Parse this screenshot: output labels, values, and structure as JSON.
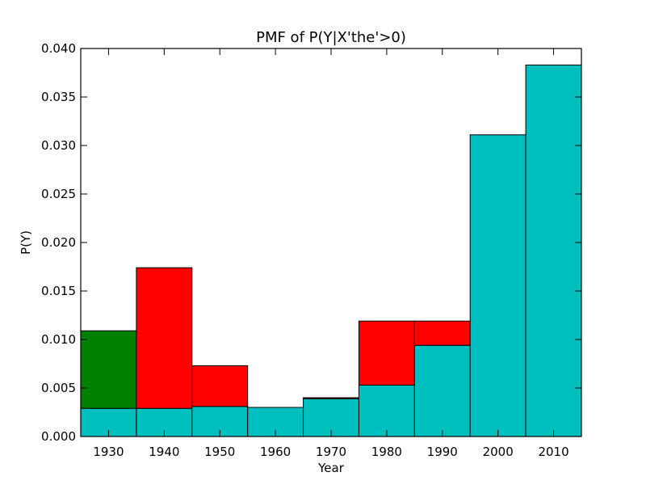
{
  "chart_data": {
    "type": "bar",
    "stacked": true,
    "title": "PMF of P(Y|X'the'>0)",
    "xlabel": "Year",
    "ylabel": "P(Y)",
    "xlim": [
      1925,
      2015
    ],
    "ylim": [
      0,
      0.04
    ],
    "bin_width": 10,
    "categories": [
      "1930",
      "1940",
      "1950",
      "1960",
      "1970",
      "1980",
      "1990",
      "2000",
      "2010"
    ],
    "x": [
      1930,
      1940,
      1950,
      1960,
      1970,
      1980,
      1990,
      2000,
      2010
    ],
    "x_ticks": [
      "1930",
      "1940",
      "1950",
      "1960",
      "1970",
      "1980",
      "1990",
      "2000",
      "2010"
    ],
    "y_ticks": [
      "0.000",
      "0.005",
      "0.010",
      "0.015",
      "0.020",
      "0.025",
      "0.030",
      "0.035",
      "0.040"
    ],
    "grid": false,
    "colors": {
      "base": "#00bfbf",
      "top_red": "#ff0000",
      "top_green": "#008000",
      "edge": "#000000"
    },
    "series": [
      {
        "values": [
          0.0029,
          0.0029,
          0.0031,
          0.003,
          0.0039,
          0.0053,
          0.0094,
          0.0311,
          0.0383
        ],
        "color": "#00bfbf"
      },
      {
        "values": [
          0,
          0.0145,
          0.0042,
          0,
          0.0001,
          0.0066,
          0.0025,
          0,
          0
        ],
        "color": "#ff0000"
      },
      {
        "values": [
          0.008,
          0,
          0,
          0,
          0,
          0,
          0,
          0,
          0
        ],
        "color": "#008000"
      }
    ]
  }
}
